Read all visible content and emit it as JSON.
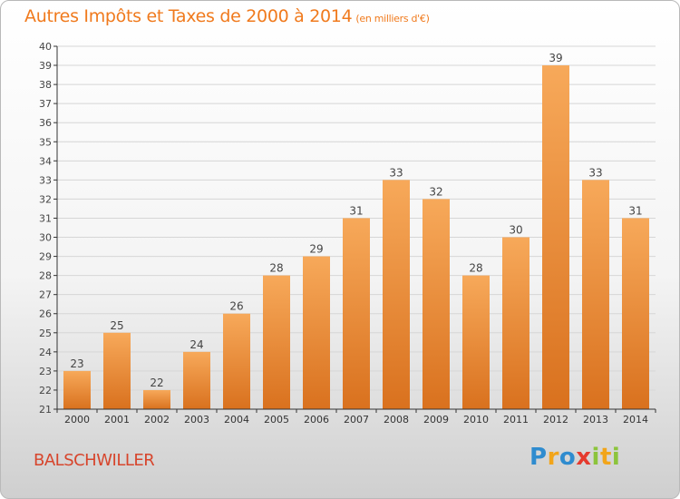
{
  "header": {
    "title": "Autres Impôts et Taxes de 2000 à 2014",
    "subtitle": "(en milliers d'€)"
  },
  "footer": {
    "place": "BALSCHWILLER",
    "logo_text": "Proxiti",
    "logo_letters": [
      {
        "char": "P",
        "color": "#2f8ccf"
      },
      {
        "char": "r",
        "color": "#f2a51a"
      },
      {
        "char": "o",
        "color": "#2f8ccf"
      },
      {
        "char": "x",
        "color": "#e53a2e"
      },
      {
        "char": "i",
        "color": "#8cc43c"
      },
      {
        "char": "t",
        "color": "#f2a51a"
      },
      {
        "char": "i",
        "color": "#8cc43c"
      }
    ]
  },
  "colors": {
    "title": "#f07a1d",
    "place": "#d7452c",
    "bar_light": "#f7a95a",
    "bar_dark": "#d9711e",
    "grid": "#d6d6d6",
    "axis": "#333333"
  },
  "chart_data": {
    "type": "bar",
    "title": "Autres Impôts et Taxes de 2000 à 2014",
    "subtitle": "(en milliers d'€)",
    "xlabel": "",
    "ylabel": "",
    "categories": [
      "2000",
      "2001",
      "2002",
      "2003",
      "2004",
      "2005",
      "2006",
      "2007",
      "2008",
      "2009",
      "2010",
      "2011",
      "2012",
      "2013",
      "2014"
    ],
    "values": [
      23,
      25,
      22,
      24,
      26,
      28,
      29,
      31,
      33,
      32,
      28,
      30,
      39,
      33,
      31
    ],
    "ylim": [
      21,
      40
    ],
    "yticks": [
      21,
      22,
      23,
      24,
      25,
      26,
      27,
      28,
      29,
      30,
      31,
      32,
      33,
      34,
      35,
      36,
      37,
      38,
      39,
      40
    ],
    "grid": true,
    "data_labels": true
  }
}
